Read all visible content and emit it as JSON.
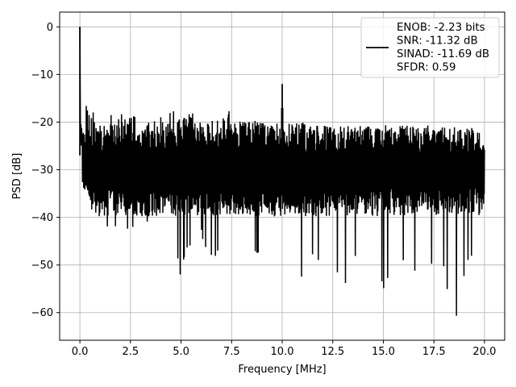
{
  "chart_data": {
    "type": "line",
    "title": "",
    "xlabel": "Frequency [MHz]",
    "ylabel": "PSD [dB]",
    "xlim": [
      -1.0,
      21.0
    ],
    "ylim": [
      -65.8,
      3.1
    ],
    "grid": true,
    "xticks": [
      {
        "value": 0.0,
        "label": "0.0"
      },
      {
        "value": 2.5,
        "label": "2.5"
      },
      {
        "value": 5.0,
        "label": "5.0"
      },
      {
        "value": 7.5,
        "label": "7.5"
      },
      {
        "value": 10.0,
        "label": "10.0"
      },
      {
        "value": 12.5,
        "label": "12.5"
      },
      {
        "value": 15.0,
        "label": "15.0"
      },
      {
        "value": 17.5,
        "label": "17.5"
      },
      {
        "value": 20.0,
        "label": "20.0"
      }
    ],
    "yticks": [
      {
        "value": 0,
        "label": "0"
      },
      {
        "value": -10,
        "label": "−10"
      },
      {
        "value": -20,
        "label": "−20"
      },
      {
        "value": -30,
        "label": "−30"
      },
      {
        "value": -40,
        "label": "−40"
      },
      {
        "value": -50,
        "label": "−50"
      },
      {
        "value": -60,
        "label": "−60"
      }
    ],
    "legend": {
      "placement": "top-right",
      "lines": [
        "ENOB: -2.23 bits",
        "SNR: -11.32 dB",
        "SINAD: -11.69 dB",
        "SFDR: 0.59"
      ]
    },
    "series": [
      {
        "color": "#000000",
        "envelope_upper": [
          [
            0.0,
            0.0
          ],
          [
            0.05,
            -3
          ],
          [
            0.1,
            -8
          ],
          [
            0.2,
            -13
          ],
          [
            0.3,
            -16
          ],
          [
            0.5,
            -18
          ],
          [
            0.8,
            -17
          ],
          [
            1.0,
            -15.5
          ],
          [
            1.5,
            -17.5
          ],
          [
            2.0,
            -18
          ],
          [
            2.5,
            -19
          ],
          [
            3.0,
            -18
          ],
          [
            3.5,
            -19
          ],
          [
            4.0,
            -18.5
          ],
          [
            4.5,
            -17
          ],
          [
            5.0,
            -19
          ],
          [
            5.5,
            -18
          ],
          [
            6.0,
            -19
          ],
          [
            6.5,
            -18.5
          ],
          [
            7.0,
            -19
          ],
          [
            7.5,
            -17
          ],
          [
            8.0,
            -20
          ],
          [
            8.5,
            -19.5
          ],
          [
            9.0,
            -20
          ],
          [
            9.5,
            -20.5
          ],
          [
            9.95,
            -20
          ],
          [
            10.0,
            -12
          ],
          [
            10.05,
            -20
          ],
          [
            10.5,
            -20.5
          ],
          [
            11.0,
            -20
          ],
          [
            11.5,
            -21
          ],
          [
            12.0,
            -20.5
          ],
          [
            12.5,
            -21
          ],
          [
            13.0,
            -20.5
          ],
          [
            13.5,
            -21
          ],
          [
            14.0,
            -20.5
          ],
          [
            14.5,
            -21
          ],
          [
            15.0,
            -20.5
          ],
          [
            15.5,
            -21
          ],
          [
            16.0,
            -20.5
          ],
          [
            16.5,
            -21
          ],
          [
            17.0,
            -20.5
          ],
          [
            17.5,
            -21
          ],
          [
            18.0,
            -20.5
          ],
          [
            18.5,
            -21
          ],
          [
            19.0,
            -21.5
          ],
          [
            19.5,
            -21
          ],
          [
            20.0,
            -22
          ]
        ],
        "envelope_lower": [
          [
            0.0,
            -8
          ],
          [
            0.1,
            -37
          ],
          [
            0.3,
            -33
          ],
          [
            0.5,
            -36
          ],
          [
            0.6,
            -41
          ],
          [
            0.7,
            -35
          ],
          [
            0.9,
            -55.5
          ],
          [
            1.1,
            -44
          ],
          [
            1.5,
            -42
          ],
          [
            2.0,
            -43
          ],
          [
            2.1,
            -46
          ],
          [
            2.5,
            -43
          ],
          [
            3.0,
            -41
          ],
          [
            3.5,
            -42
          ],
          [
            4.0,
            -44
          ],
          [
            4.7,
            -46
          ],
          [
            5.0,
            -53.5
          ],
          [
            5.3,
            -47
          ],
          [
            5.6,
            -45
          ],
          [
            6.0,
            -44
          ],
          [
            6.6,
            -50.5
          ],
          [
            7.0,
            -46
          ],
          [
            7.6,
            -55
          ],
          [
            8.0,
            -49
          ],
          [
            8.5,
            -48
          ],
          [
            9.0,
            -50
          ],
          [
            9.3,
            -52
          ],
          [
            9.6,
            -47
          ],
          [
            10.0,
            -48
          ],
          [
            10.3,
            -51
          ],
          [
            10.8,
            -56.5
          ],
          [
            11.2,
            -50
          ],
          [
            11.6,
            -49
          ],
          [
            12.0,
            -51
          ],
          [
            12.5,
            -48
          ],
          [
            12.9,
            -54.5
          ],
          [
            13.3,
            -55
          ],
          [
            13.6,
            -49
          ],
          [
            14.0,
            -50
          ],
          [
            14.5,
            -51.5
          ],
          [
            15.0,
            -55
          ],
          [
            15.5,
            -50
          ],
          [
            16.0,
            -49
          ],
          [
            16.3,
            -55.5
          ],
          [
            16.8,
            -50
          ],
          [
            17.2,
            -51
          ],
          [
            17.6,
            -52
          ],
          [
            18.0,
            -51
          ],
          [
            18.2,
            -58.5
          ],
          [
            18.6,
            -62.5
          ],
          [
            18.9,
            -54
          ],
          [
            19.2,
            -50
          ],
          [
            19.5,
            -48
          ],
          [
            19.9,
            -58.5
          ],
          [
            20.0,
            -45
          ]
        ],
        "typical_range": [
          -20,
          -38
        ],
        "peak": {
          "x": 0.0,
          "y": 0.0
        },
        "spur": {
          "x": 10.0,
          "y": -12.0
        }
      }
    ]
  }
}
